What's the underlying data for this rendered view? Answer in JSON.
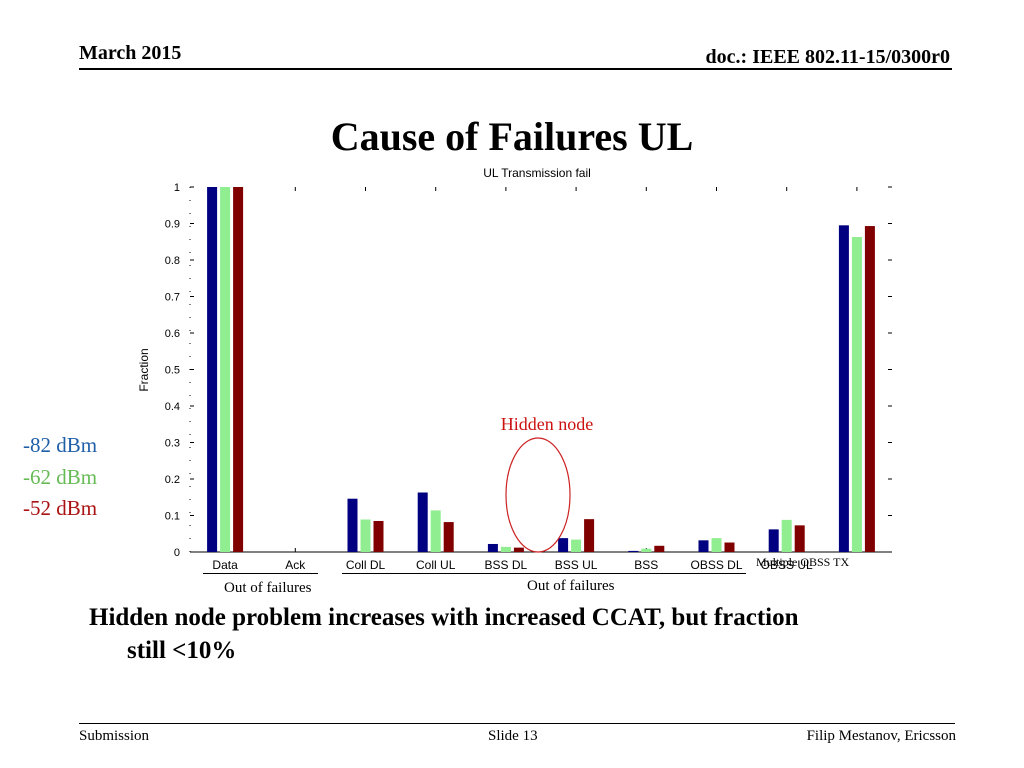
{
  "header": {
    "date": "March 2015",
    "doc": "doc.: IEEE 802.11-15/0300r0"
  },
  "slide_title": "Cause of Failures UL",
  "legend": [
    {
      "label": "-82 dBm",
      "color": "#1f5fa8"
    },
    {
      "label": "-62 dBm",
      "color": "#66bb55"
    },
    {
      "label": "-52 dBm",
      "color": "#aa1111"
    }
  ],
  "annotations": {
    "hidden_node": "Hidden node",
    "multiple_obss_tx": "Multiple OBSS TX",
    "out_of_failures_left": "Out of failures",
    "out_of_failures_right": "Out of failures"
  },
  "bottom_text": {
    "line1": "Hidden node problem increases with increased CCAT, but fraction",
    "line2": "still <10%"
  },
  "footer": {
    "left": "Submission",
    "center": "Slide 13",
    "right": "Filip Mestanov, Ericsson"
  },
  "chart_data": {
    "type": "bar",
    "title": "UL Transmission fail",
    "xlabel": "",
    "ylabel": "Fraction",
    "ylim": [
      0,
      1
    ],
    "yticks": [
      "0",
      "0.1",
      "0.2",
      "0.3",
      "0.4",
      "0.5",
      "0.6",
      "0.7",
      "0.8",
      "0.9",
      "1"
    ],
    "categories": [
      "Data",
      "Ack",
      "Coll DL",
      "Coll UL",
      "BSS DL",
      "BSS UL",
      "BSS",
      "OBSS DL",
      "OBSS UL",
      ""
    ],
    "series": [
      {
        "color": "#000080",
        "values": [
          1.0,
          0.0,
          0.146,
          0.163,
          0.022,
          0.038,
          0.003,
          0.032,
          0.062,
          0.895
        ]
      },
      {
        "color": "#90ee90",
        "values": [
          1.0,
          0.0,
          0.089,
          0.114,
          0.014,
          0.034,
          0.009,
          0.038,
          0.088,
          0.863
        ]
      },
      {
        "color": "#800000",
        "values": [
          1.0,
          0.0,
          0.085,
          0.082,
          0.012,
          0.09,
          0.017,
          0.026,
          0.073,
          0.893
        ]
      }
    ]
  }
}
